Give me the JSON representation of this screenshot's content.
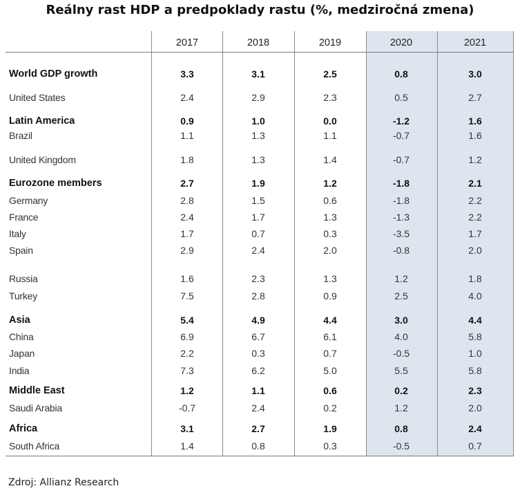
{
  "title": "Reálny rast HDP a predpoklady rastu (%, medziročná zmena)",
  "source": "Zdroj: Allianz Research",
  "highlight_color": "#dde6ef",
  "table": {
    "columns": [
      "2017",
      "2018",
      "2019",
      "2020",
      "2021"
    ],
    "rows": [
      {
        "label": "World GDP growth",
        "bold": true,
        "values": [
          "3.3",
          "3.1",
          "2.5",
          "0.8",
          "3.0"
        ]
      },
      {
        "label": "United States",
        "bold": false,
        "values": [
          "2.4",
          "2.9",
          "2.3",
          "0.5",
          "2.7"
        ]
      },
      {
        "label": "Latin America",
        "bold": true,
        "values": [
          "0.9",
          "1.0",
          "0.0",
          "-1.2",
          "1.6"
        ]
      },
      {
        "label": "Brazil",
        "bold": false,
        "values": [
          "1.1",
          "1.3",
          "1.1",
          "-0.7",
          "1.6"
        ]
      },
      {
        "label": "United Kingdom",
        "bold": false,
        "values": [
          "1.8",
          "1.3",
          "1.4",
          "-0.7",
          "1.2"
        ]
      },
      {
        "label": "Eurozone members",
        "bold": true,
        "values": [
          "2.7",
          "1.9",
          "1.2",
          "-1.8",
          "2.1"
        ]
      },
      {
        "label": "Germany",
        "bold": false,
        "values": [
          "2.8",
          "1.5",
          "0.6",
          "-1.8",
          "2.2"
        ]
      },
      {
        "label": "France",
        "bold": false,
        "values": [
          "2.4",
          "1.7",
          "1.3",
          "-1.3",
          "2.2"
        ]
      },
      {
        "label": "Italy",
        "bold": false,
        "values": [
          "1.7",
          "0.7",
          "0.3",
          "-3.5",
          "1.7"
        ]
      },
      {
        "label": "Spain",
        "bold": false,
        "values": [
          "2.9",
          "2.4",
          "2.0",
          "-0.8",
          "2.0"
        ]
      },
      {
        "label": "Russia",
        "bold": false,
        "values": [
          "1.6",
          "2.3",
          "1.3",
          "1.2",
          "1.8"
        ]
      },
      {
        "label": "Turkey",
        "bold": false,
        "values": [
          "7.5",
          "2.8",
          "0.9",
          "2.5",
          "4.0"
        ]
      },
      {
        "label": "Asia",
        "bold": true,
        "values": [
          "5.4",
          "4.9",
          "4.4",
          "3.0",
          "4.4"
        ]
      },
      {
        "label": "China",
        "bold": false,
        "values": [
          "6.9",
          "6.7",
          "6.1",
          "4.0",
          "5.8"
        ]
      },
      {
        "label": "Japan",
        "bold": false,
        "values": [
          "2.2",
          "0.3",
          "0.7",
          "-0.5",
          "1.0"
        ]
      },
      {
        "label": "India",
        "bold": false,
        "values": [
          "7.3",
          "6.2",
          "5.0",
          "5.5",
          "5.8"
        ]
      },
      {
        "label": "Middle East",
        "bold": true,
        "values": [
          "1.2",
          "1.1",
          "0.6",
          "0.2",
          "2.3"
        ]
      },
      {
        "label": "Saudi Arabia",
        "bold": false,
        "values": [
          "-0.7",
          "2.4",
          "0.2",
          "1.2",
          "2.0"
        ]
      },
      {
        "label": "Africa",
        "bold": true,
        "values": [
          "3.1",
          "2.7",
          "1.9",
          "0.8",
          "2.4"
        ]
      },
      {
        "label": "South Africa",
        "bold": false,
        "values": [
          "1.4",
          "0.8",
          "0.3",
          "-0.5",
          "0.7"
        ]
      }
    ]
  }
}
